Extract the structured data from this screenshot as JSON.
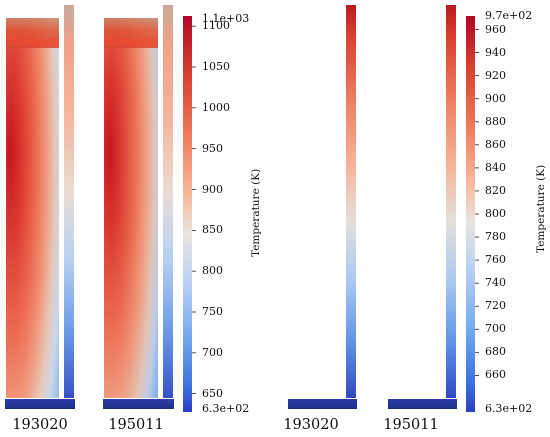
{
  "colors": {
    "cold": "#3a4fc4",
    "cool": "#4f9be8",
    "light_blue": "#bcd3f2",
    "neutral": "#ededed",
    "peach": "#f6b69b",
    "warm": "#ec6e54",
    "hot": "#cf1b21",
    "plate": "#25369a"
  },
  "colorbar_left": {
    "title": "Temperature (K)",
    "min_label": "6.3e+02",
    "max_label": "1.1e+03",
    "ticks": [
      "1100",
      "1050",
      "1000",
      "950",
      "900",
      "850",
      "800",
      "750",
      "700",
      "650"
    ],
    "tick_values": [
      1100,
      1050,
      1000,
      950,
      900,
      850,
      800,
      750,
      700,
      650
    ],
    "min_value": 630,
    "max_value": 1110
  },
  "colorbar_right": {
    "title": "Temperature (K)",
    "min_label": "6.3e+02",
    "max_label": "9.7e+02",
    "ticks": [
      "960",
      "940",
      "920",
      "900",
      "880",
      "860",
      "840",
      "820",
      "800",
      "780",
      "760",
      "740",
      "720",
      "700",
      "680",
      "660"
    ],
    "tick_values": [
      960,
      940,
      920,
      900,
      880,
      860,
      840,
      820,
      800,
      780,
      760,
      740,
      720,
      700,
      680,
      660
    ],
    "min_value": 630,
    "max_value": 970
  },
  "panels": [
    {
      "label": "193020"
    },
    {
      "label": "195011"
    },
    {
      "label": "193020"
    },
    {
      "label": "195011"
    }
  ]
}
